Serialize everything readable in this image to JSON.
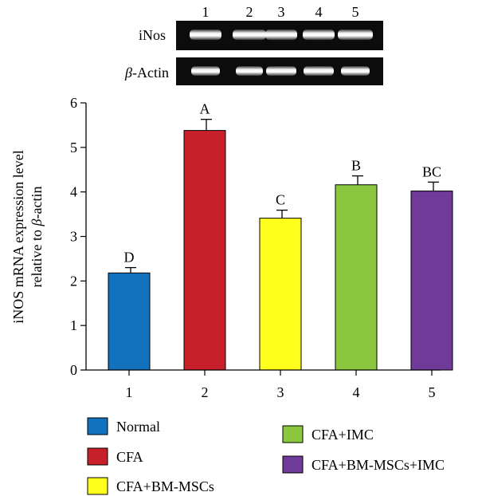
{
  "gel": {
    "lane_labels": [
      "1",
      "2",
      "3",
      "4",
      "5"
    ],
    "rows": [
      {
        "label": "iNos"
      },
      {
        "label_symbol": "β",
        "label_rest": "-Actin"
      }
    ]
  },
  "chart_data": {
    "type": "bar",
    "categories": [
      "1",
      "2",
      "3",
      "4",
      "5"
    ],
    "values": [
      2.18,
      5.38,
      3.41,
      4.16,
      4.02
    ],
    "errors": [
      0.12,
      0.25,
      0.18,
      0.2,
      0.2
    ],
    "significance_letters": [
      "D",
      "A",
      "C",
      "B",
      "BC"
    ],
    "colors": [
      "#1272bd",
      "#c8202a",
      "#ffff1e",
      "#8bc83f",
      "#6f3a98"
    ],
    "ylabel_line1": "iNOS mRNA expression level",
    "ylabel_line2_prefix": "relative to ",
    "ylabel_line2_symbol": "β",
    "ylabel_line2_suffix": "-actin",
    "xlabel": "",
    "ylim": [
      0,
      6
    ],
    "yticks": [
      "0",
      "1",
      "2",
      "3",
      "4",
      "5",
      "6"
    ],
    "grid": false
  },
  "legend": {
    "items": [
      {
        "label": "Normal",
        "color": "#1272bd"
      },
      {
        "label": "CFA",
        "color": "#c8202a"
      },
      {
        "label": "CFA+BM-MSCs",
        "color": "#ffff1e"
      },
      {
        "label": "CFA+IMC",
        "color": "#8bc83f"
      },
      {
        "label": "CFA+BM-MSCs+IMC",
        "color": "#6f3a98"
      }
    ]
  }
}
